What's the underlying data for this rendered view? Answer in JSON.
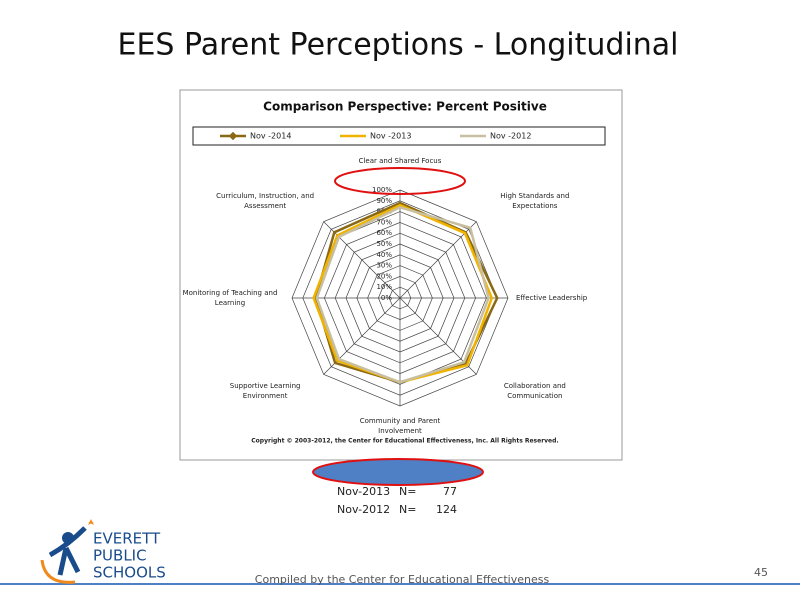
{
  "slide_title": "EES Parent Perceptions - Longitudinal",
  "chart_data": {
    "type": "radar",
    "title": "Comparison Perspective: Percent Positive",
    "categories": [
      "Clear and Shared Focus",
      "High Standards and Expectations",
      "Effective Leadership",
      "Collaboration and Communication",
      "Community and Parent Involvement",
      "Supportive Learning Environment",
      "Monitoring of Teaching and Learning",
      "Curriculum, Instruction, and Assessment"
    ],
    "series": [
      {
        "name": "Nov -2014",
        "color": "#8b6914",
        "values": [
          88,
          86,
          90,
          86,
          78,
          85,
          78,
          86
        ]
      },
      {
        "name": "Nov -2013",
        "color": "#f0b400",
        "values": [
          86,
          85,
          85,
          88,
          78,
          82,
          80,
          82
        ]
      },
      {
        "name": "Nov -2012",
        "color": "#c8bfa0",
        "values": [
          84,
          92,
          82,
          84,
          78,
          80,
          77,
          80
        ]
      }
    ],
    "ylim": [
      0,
      100
    ],
    "yticks": [
      {
        "value": 0,
        "label": "0%"
      },
      {
        "value": 10,
        "label": "10%"
      },
      {
        "value": 20,
        "label": "20%"
      },
      {
        "value": 30,
        "label": "30%"
      },
      {
        "value": 40,
        "label": "40%"
      },
      {
        "value": 50,
        "label": "50%"
      },
      {
        "value": 60,
        "label": "60%"
      },
      {
        "value": 70,
        "label": "70%"
      },
      {
        "value": 80,
        "label": "80%"
      },
      {
        "value": 90,
        "label": "90%"
      },
      {
        "value": 100,
        "label": "100%"
      }
    ],
    "grid": true,
    "copyright": "Copyright © 2003-2012, the Center for Educational Effectiveness, Inc.  All Rights Reserved."
  },
  "n_table": {
    "rows": [
      [
        "Nov-2013",
        "N=",
        77
      ],
      [
        "Nov-2012",
        "N=",
        124
      ]
    ]
  },
  "logo": {
    "line1": "EVERETT",
    "line2": "PUBLIC",
    "line3": "SCHOOLS"
  },
  "footer": "Compiled by the Center for Educational Effectiveness",
  "page_number": "45"
}
